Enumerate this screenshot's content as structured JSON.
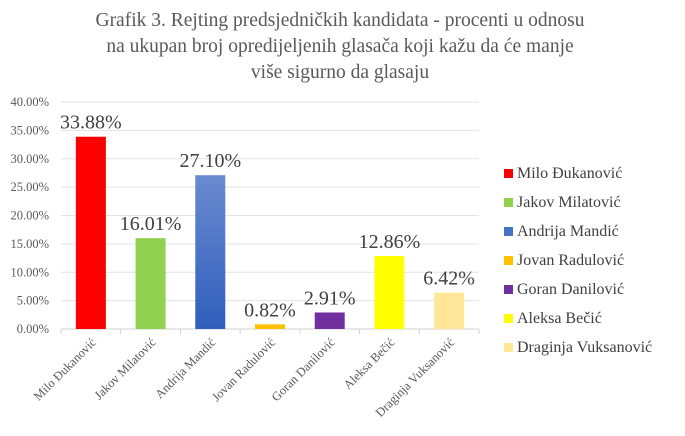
{
  "chart_data": {
    "type": "bar",
    "title_lines": [
      "Grafik 3. Rejting predsjedničkih kandidata - procenti u odnosu",
      "na ukupan broj opredijeljenih glasača koji kažu da će manje",
      "više sigurno da glasaju"
    ],
    "categories": [
      "Milo Đukanović",
      "Jakov Milatović",
      "Andrija Mandić",
      "Jovan Radulović",
      "Goran Danilović",
      "Aleksa Bečić",
      "Draginja Vuksanović"
    ],
    "values": [
      33.88,
      16.01,
      27.1,
      0.82,
      2.91,
      12.86,
      6.42
    ],
    "data_labels": [
      "33.88%",
      "16.01%",
      "27.10%",
      "0.82%",
      "2.91%",
      "12.86%",
      "6.42%"
    ],
    "colors": [
      "#ff0000",
      "#92d050",
      "#4472c4",
      "#ffc000",
      "#7030a0",
      "#ffff00",
      "#ffe699"
    ],
    "y_ticks": [
      "0.00%",
      "5.00%",
      "10.00%",
      "15.00%",
      "20.00%",
      "25.00%",
      "30.00%",
      "35.00%",
      "40.00%"
    ],
    "ylim": [
      0,
      40
    ],
    "xlabel": "",
    "ylabel": "",
    "grid": true,
    "legend_position": "right"
  }
}
